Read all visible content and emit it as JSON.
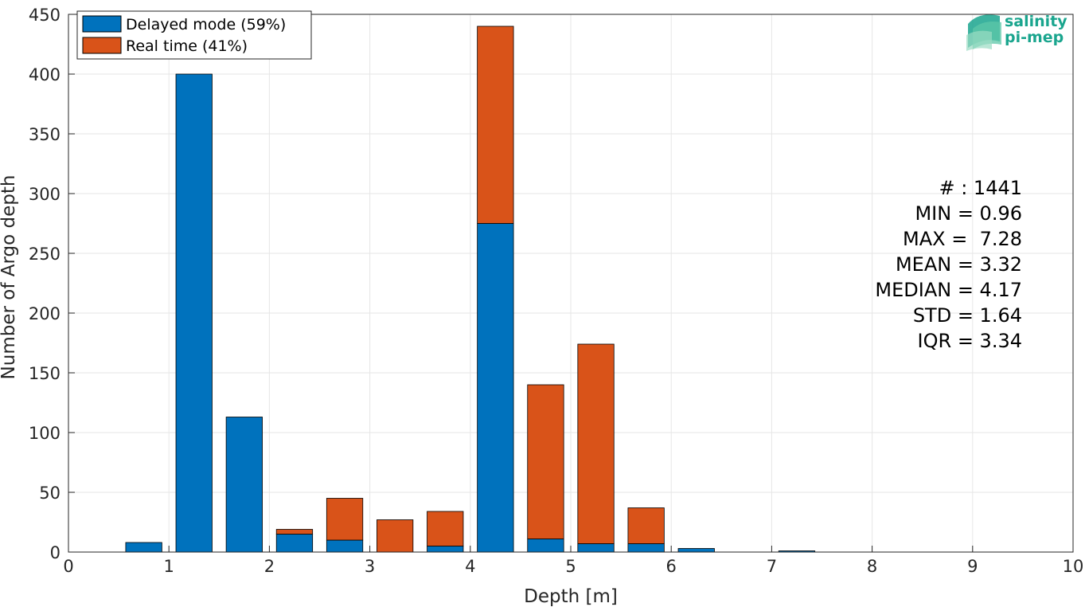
{
  "chart_data": {
    "type": "bar",
    "stacked": true,
    "xlabel": "Depth [m]",
    "ylabel": "Number of Argo depth",
    "xlim": [
      0,
      10
    ],
    "ylim": [
      0,
      450
    ],
    "xticks": [
      0,
      1,
      2,
      3,
      4,
      5,
      6,
      7,
      8,
      9,
      10
    ],
    "yticks": [
      0,
      50,
      100,
      150,
      200,
      250,
      300,
      350,
      400,
      450
    ],
    "grid": true,
    "legend_position": "top-left",
    "bin_width": 0.5,
    "bar_fraction": 0.72,
    "x": [
      0.75,
      1.25,
      1.75,
      2.25,
      2.75,
      3.25,
      3.75,
      4.25,
      4.75,
      5.25,
      5.75,
      6.25,
      6.75,
      7.25,
      7.75,
      8.25,
      8.75,
      9.25
    ],
    "series": [
      {
        "name": "Delayed mode (59%)",
        "color": "#0072bd",
        "values": [
          8,
          400,
          113,
          15,
          10,
          0,
          5,
          275,
          11,
          7,
          7,
          3,
          0,
          1,
          0,
          0,
          0,
          0
        ]
      },
      {
        "name": "Real time (41%)",
        "color": "#d95319",
        "values": [
          0,
          0,
          0,
          4,
          35,
          27,
          29,
          165,
          129,
          167,
          30,
          0,
          0,
          0,
          0,
          0,
          0,
          0
        ]
      }
    ],
    "stats": [
      "# : 1441",
      "MIN = 0.96",
      "MAX =  7.28",
      "MEAN = 3.32",
      "MEDIAN = 4.17",
      "STD = 1.64",
      "IQR = 3.34"
    ]
  },
  "logo": {
    "line1": "salinity",
    "line2": "pi-mep",
    "color": "#1aa58e"
  }
}
